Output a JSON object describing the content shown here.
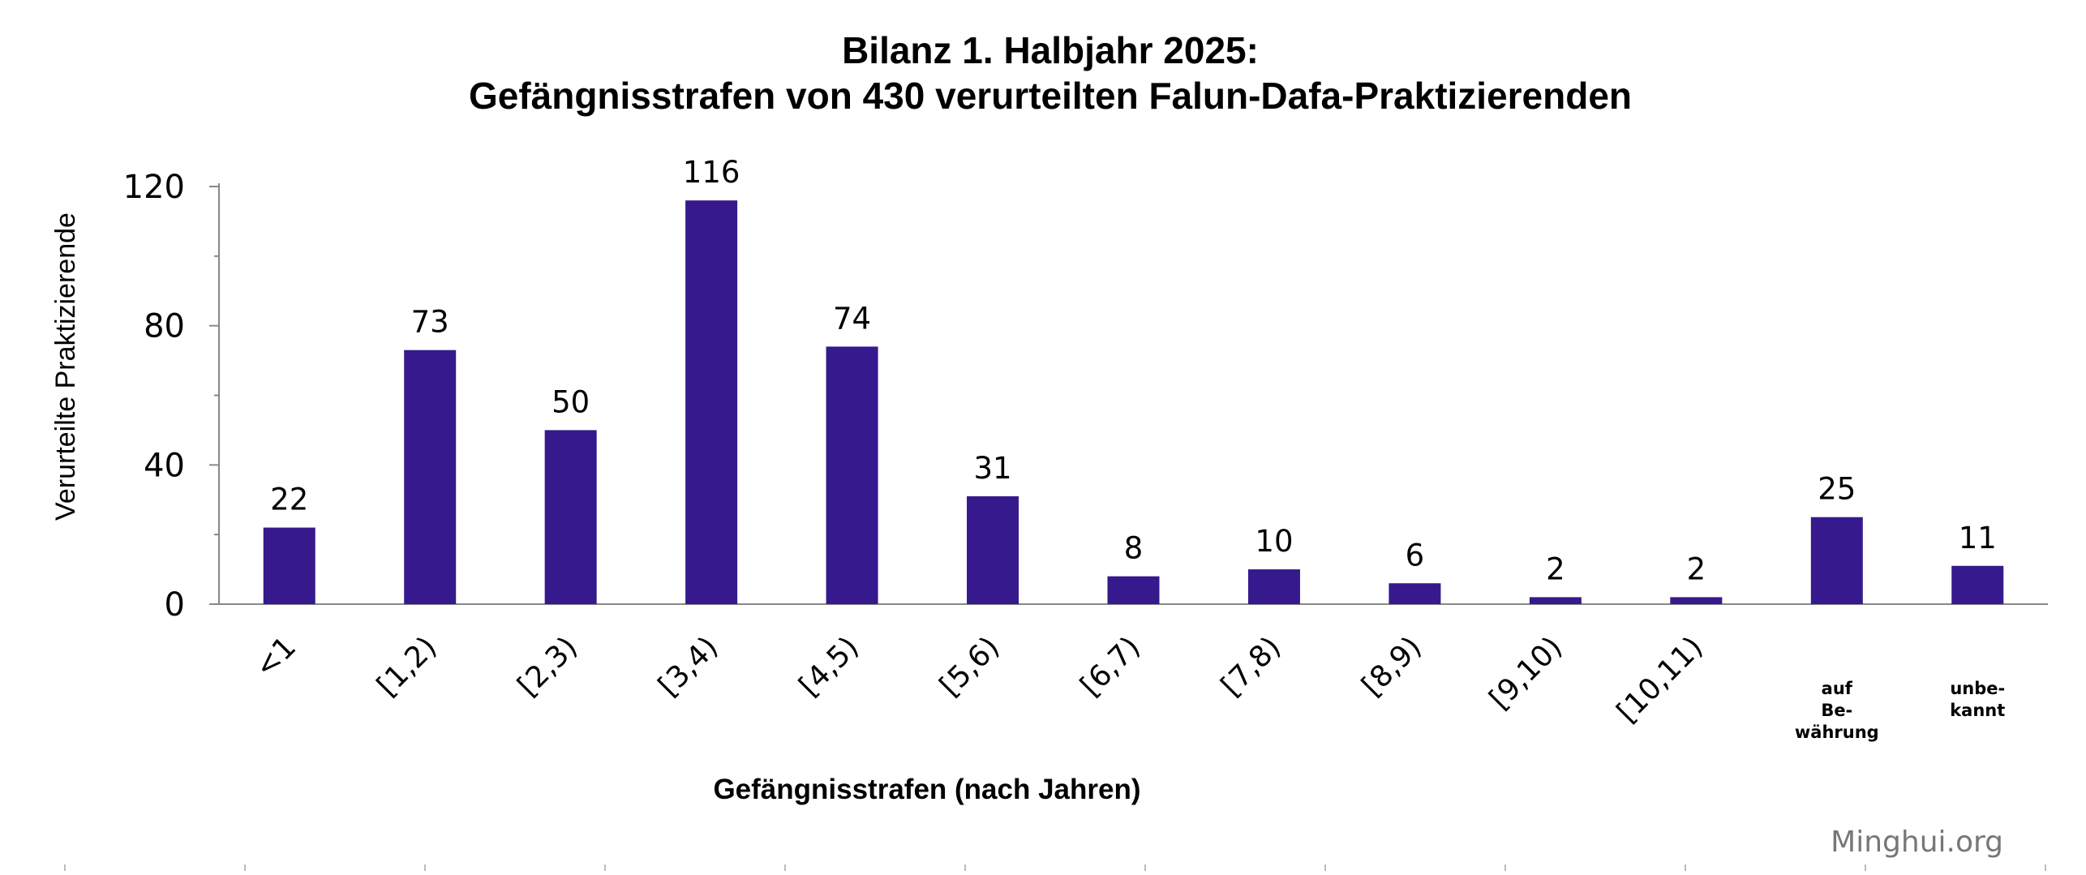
{
  "chart_data": {
    "type": "bar",
    "title_line1": "Bilanz 1. Halbjahr 2025:",
    "title_line2": "Gefängnisstrafen von 430 verurteilten Falun-Dafa-Praktizierenden",
    "xlabel": "Gefängnisstrafen (nach Jahren)",
    "ylabel": "Verurteilte Praktizierende",
    "categories": [
      "<1",
      "[1,2)",
      "[2,3)",
      "[3,4)",
      "[4,5)",
      "[5,6)",
      "[6,7)",
      "[7,8)",
      "[8,9)",
      "[9,10)",
      "[10,11)",
      "auf Be- währung",
      "unbe- kannt"
    ],
    "values": [
      22,
      73,
      50,
      116,
      74,
      31,
      8,
      10,
      6,
      2,
      2,
      25,
      11
    ],
    "ylim": [
      0,
      120
    ],
    "yticks": [
      0,
      40,
      80,
      120
    ],
    "bar_color": "#36198c",
    "grid": false,
    "legend": "none"
  },
  "credit": "Minghui.org"
}
